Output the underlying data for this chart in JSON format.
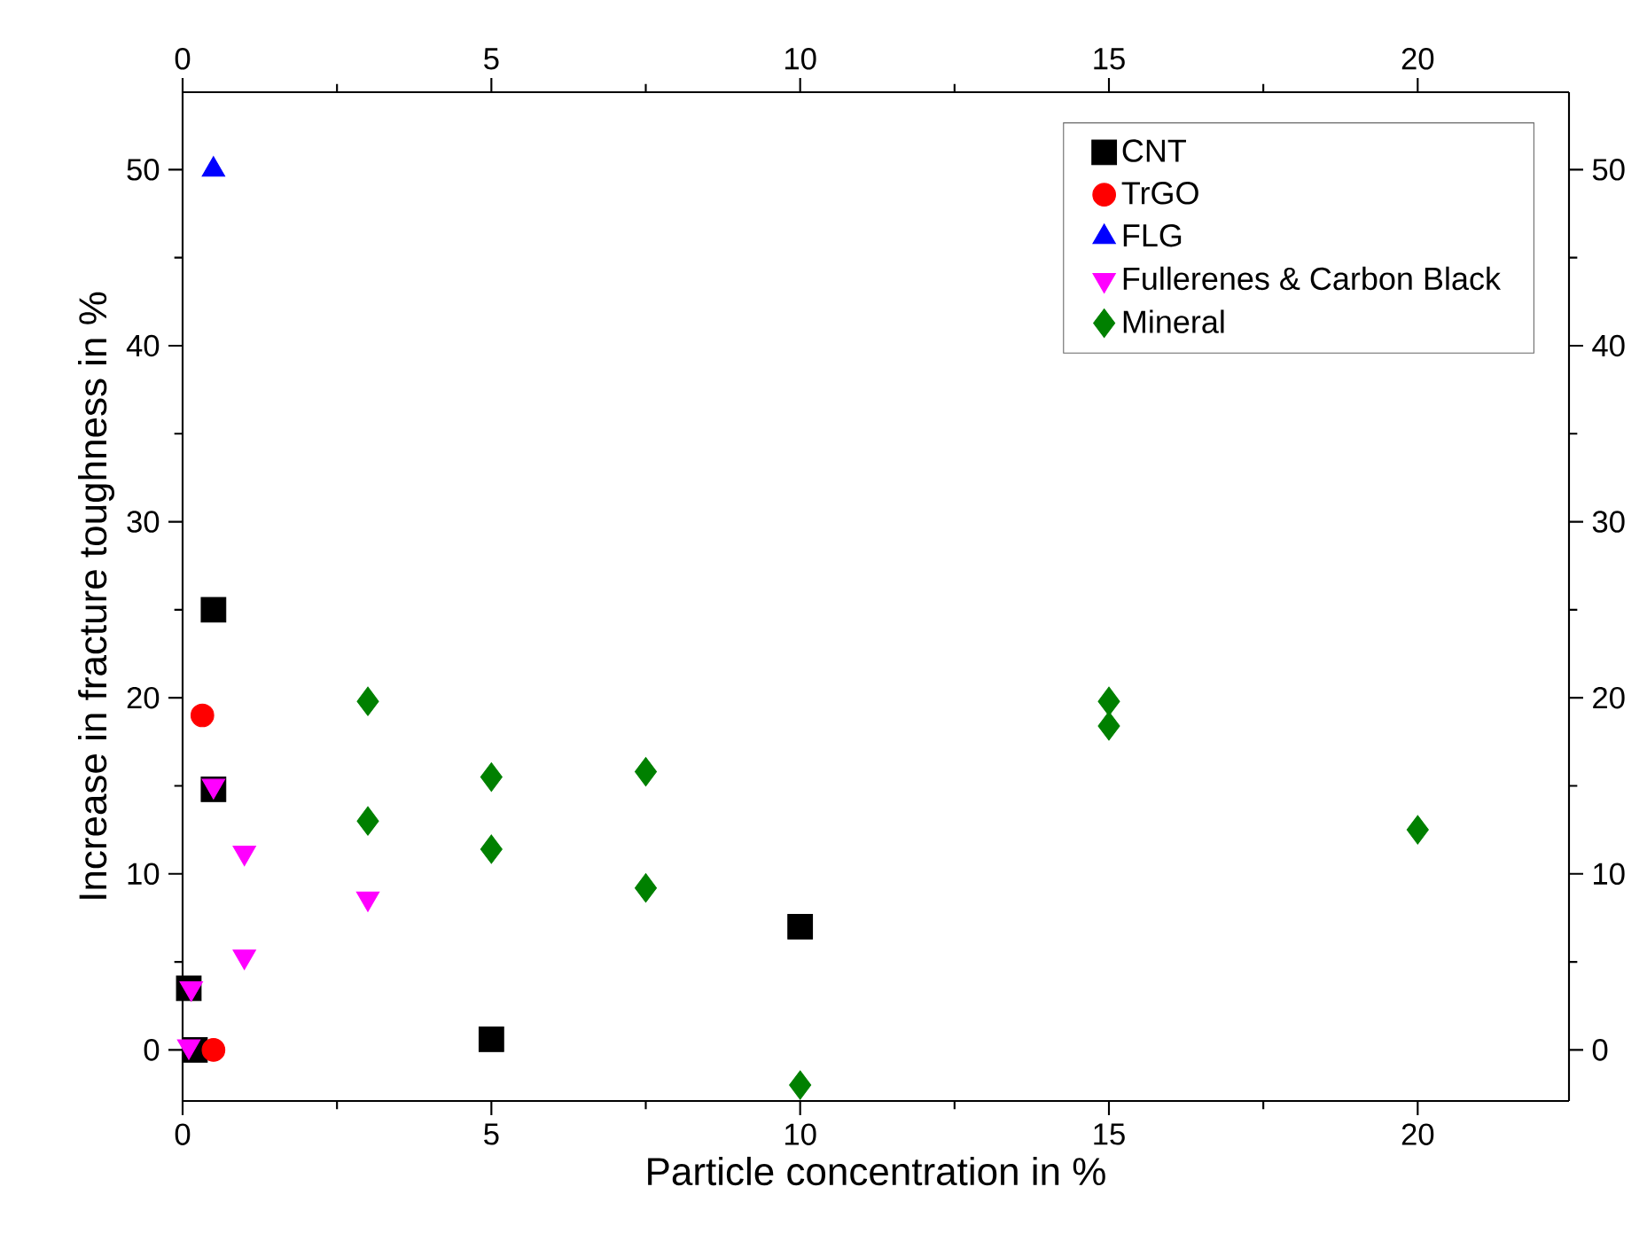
{
  "chart_data": {
    "type": "scatter",
    "xlabel": "Particle concentration in %",
    "ylabel": "Increase in fracture toughness in %",
    "xlim": [
      0,
      22.45
    ],
    "xticks": [
      0,
      5,
      10,
      15,
      20
    ],
    "ylim": [
      -2.9,
      54.4
    ],
    "yticks": [
      0,
      10,
      20,
      30,
      40,
      50
    ],
    "x2lim": [
      0,
      22.45
    ],
    "x2ticks": [
      0,
      5,
      10,
      15,
      20
    ],
    "y2lim": [
      -2.9,
      54.4
    ],
    "y2ticks": [
      0,
      10,
      20,
      30,
      40,
      50
    ],
    "legend": "top right",
    "grid": false,
    "series": [
      {
        "name": "CNT",
        "color": "#000000",
        "marker": "square",
        "x": [
          0.5,
          0.5,
          0.1,
          0.2,
          5,
          10
        ],
        "values": [
          25,
          14.8,
          3.5,
          0,
          0.6,
          7
        ]
      },
      {
        "name": "TrGO",
        "color": "#ff0000",
        "marker": "circle",
        "x": [
          0.32,
          0.5
        ],
        "values": [
          19,
          0
        ]
      },
      {
        "name": "FLG",
        "color": "#0000ff",
        "marker": "triangle",
        "x": [
          0.5
        ],
        "values": [
          50
        ]
      },
      {
        "name": "Fullerenes & Carbon Black",
        "color": "#ff00ff",
        "marker": "triangle_down",
        "x": [
          0.5,
          1,
          1,
          0.14,
          0.1,
          3
        ],
        "values": [
          15,
          11.2,
          5.3,
          3.5,
          0.2,
          8.6
        ]
      },
      {
        "name": "Mineral",
        "color": "#008000",
        "marker": "diamond",
        "x": [
          3,
          3,
          5,
          5,
          7.5,
          7.5,
          10,
          15,
          15,
          20
        ],
        "values": [
          19.8,
          13,
          15.5,
          11.4,
          15.8,
          9.2,
          -2,
          19.8,
          18.4,
          12.5
        ]
      }
    ]
  }
}
